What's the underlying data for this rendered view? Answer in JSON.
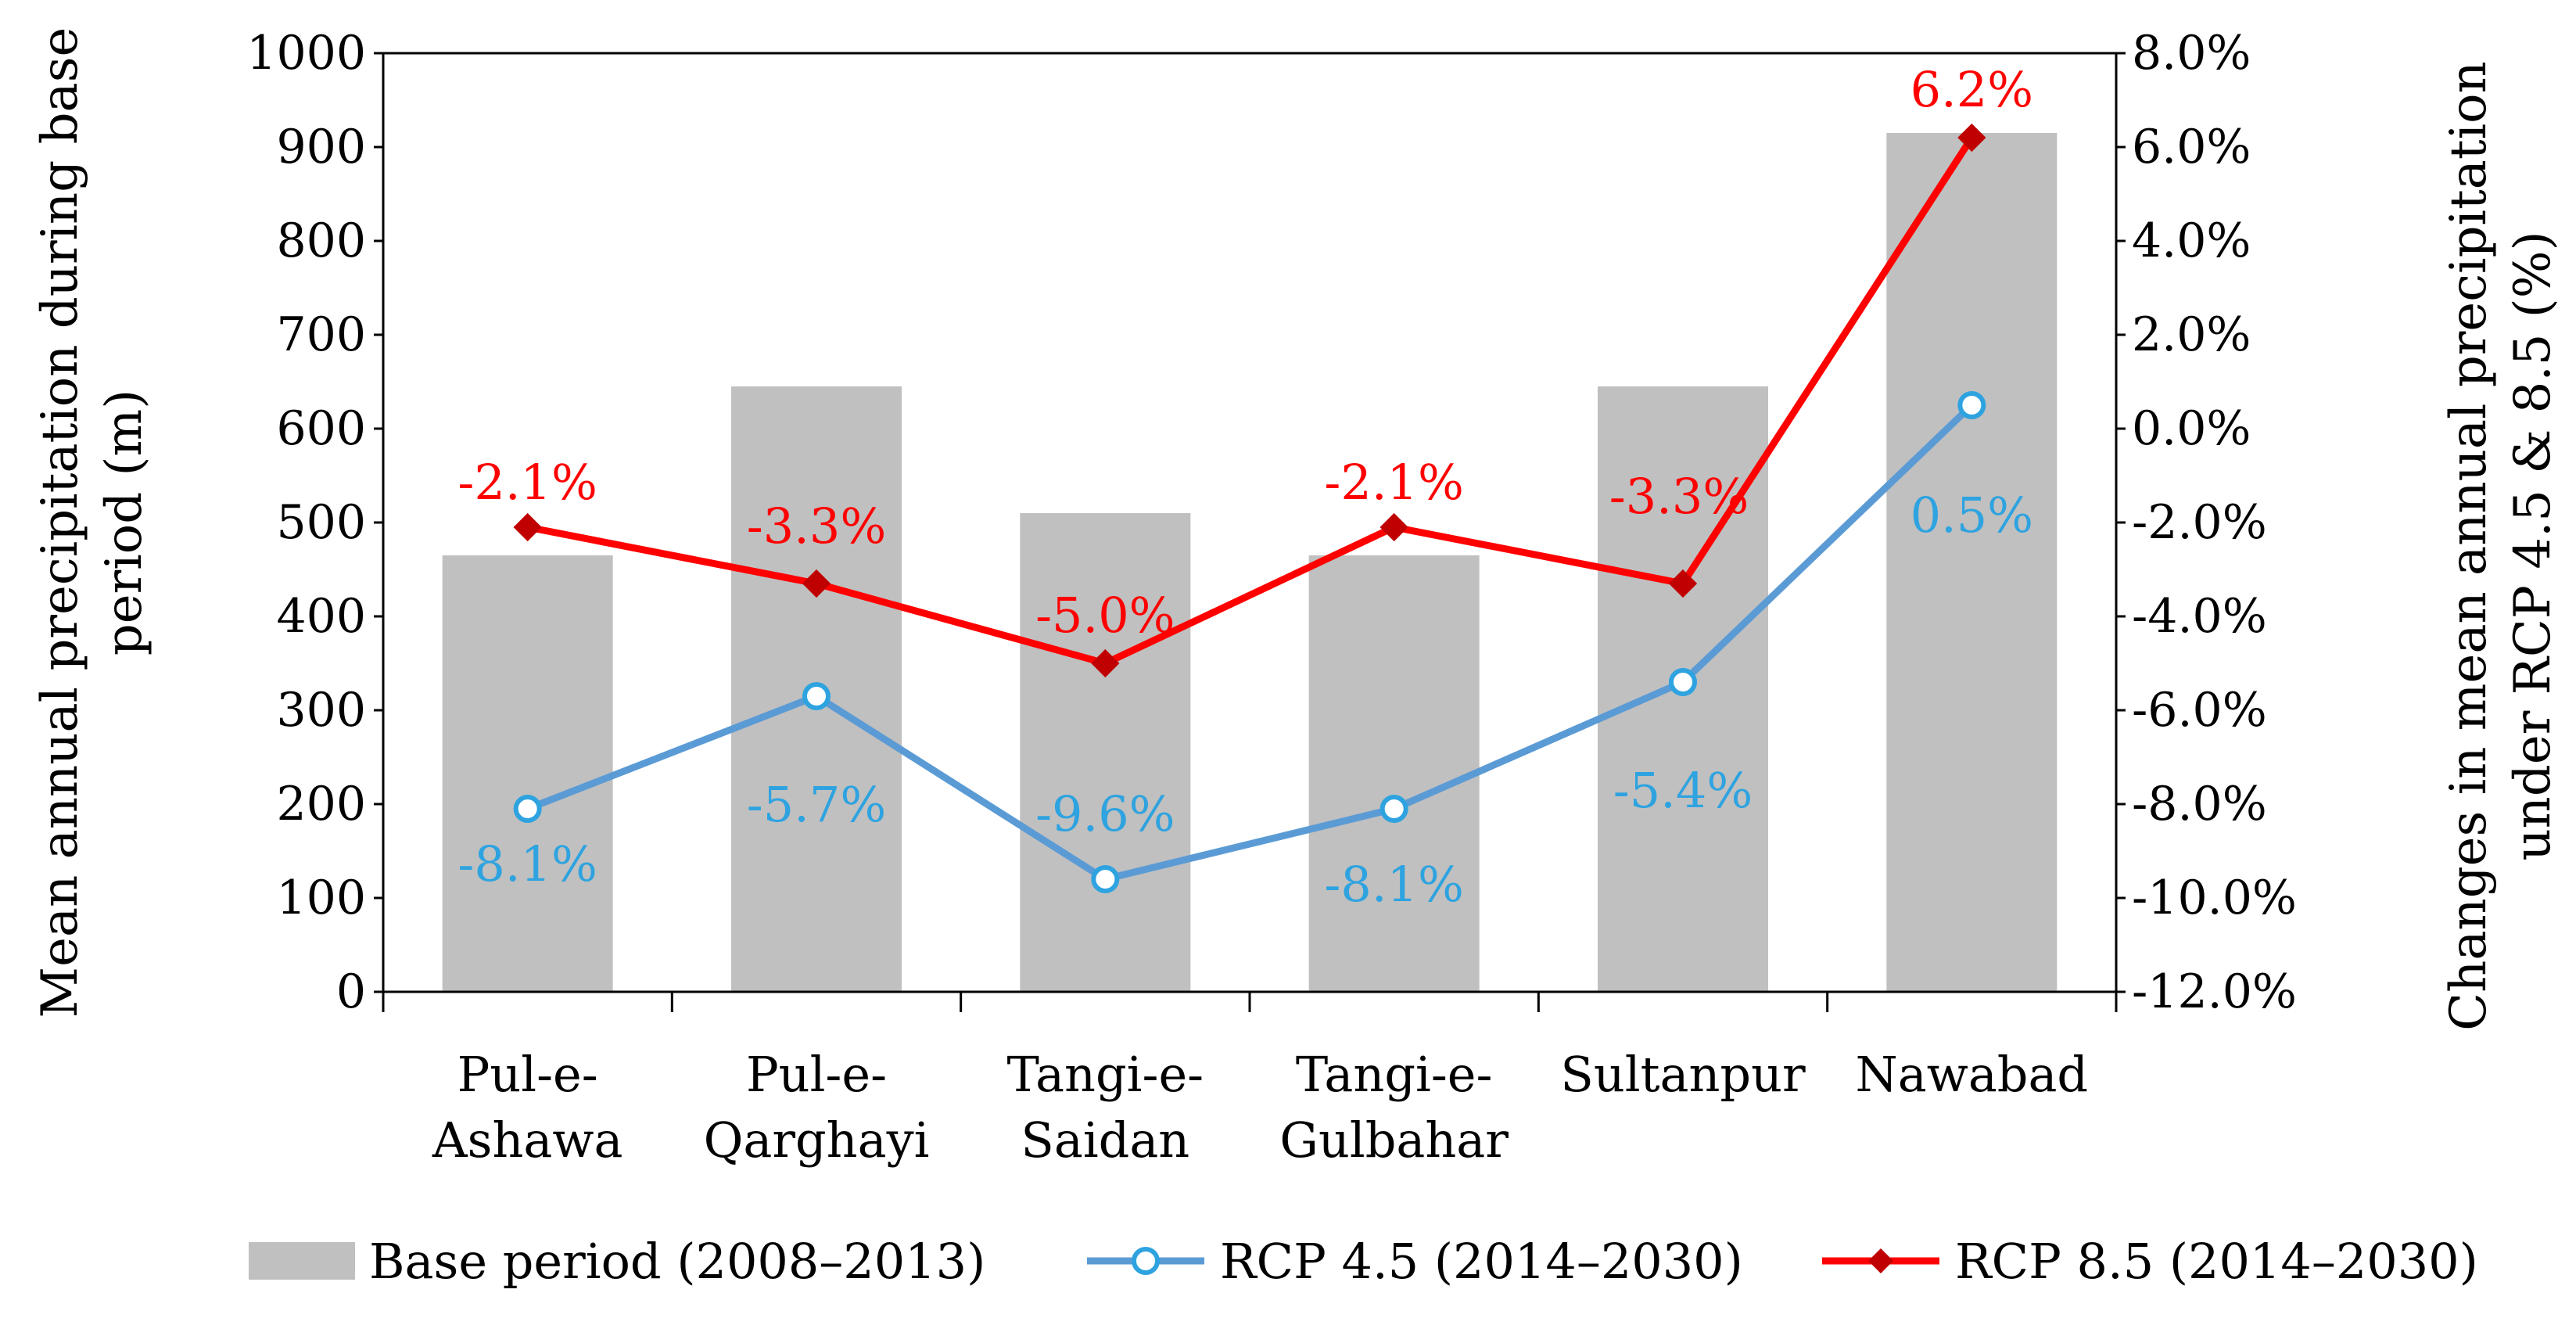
{
  "chart_data": {
    "type": "bar",
    "categories": [
      [
        "Pul-e-",
        "Ashawa"
      ],
      [
        "Pul-e-",
        "Qarghayi"
      ],
      [
        "Tangi-e-",
        "Saidan"
      ],
      [
        "Tangi-e-",
        "Gulbahar"
      ],
      [
        "Sultanpur"
      ],
      [
        "Nawabad"
      ]
    ],
    "bar_series": {
      "name": "Base period (2008–2013)",
      "values": [
        465,
        645,
        510,
        465,
        645,
        915
      ],
      "color": "#c0c0c0"
    },
    "line_series": [
      {
        "name": "RCP 4.5 (2014–2030)",
        "values": [
          -8.1,
          -5.7,
          -9.6,
          -8.1,
          -5.4,
          0.5
        ],
        "labels": [
          "-8.1%",
          "-5.7%",
          "-9.6%",
          "-8.1%",
          "-5.4%",
          "0.5%"
        ],
        "label_position": "below",
        "color": "#5b9bd5",
        "label_color": "#2ea3e0",
        "marker": "circle"
      },
      {
        "name": "RCP 8.5 (2014–2030)",
        "values": [
          -2.1,
          -3.3,
          -5.0,
          -2.1,
          -3.3,
          6.2
        ],
        "labels": [
          "-2.1%",
          "-3.3%",
          "-5.0%",
          "-2.1%",
          "-3.3%",
          "6.2%"
        ],
        "label_position": "above",
        "color": "#ff0000",
        "label_color": "#ff0000",
        "marker": "diamond"
      }
    ],
    "left_axis": {
      "title_lines": [
        "Mean annual precipitation during base",
        "period (m)"
      ],
      "ylim": [
        0,
        1000
      ],
      "ticks": [
        "0",
        "100",
        "200",
        "300",
        "400",
        "500",
        "600",
        "700",
        "800",
        "900",
        "1000"
      ]
    },
    "right_axis": {
      "title_lines": [
        "Changes in mean annual precipitation",
        "under RCP 4.5 & 8.5 (%)"
      ],
      "ylim": [
        -12.0,
        8.0
      ],
      "ticks": [
        "-12.0%",
        "-10.0%",
        "-8.0%",
        "-6.0%",
        "-4.0%",
        "-2.0%",
        "0.0%",
        "2.0%",
        "4.0%",
        "6.0%",
        "8.0%"
      ]
    },
    "grid": false,
    "legend_position": "bottom"
  }
}
